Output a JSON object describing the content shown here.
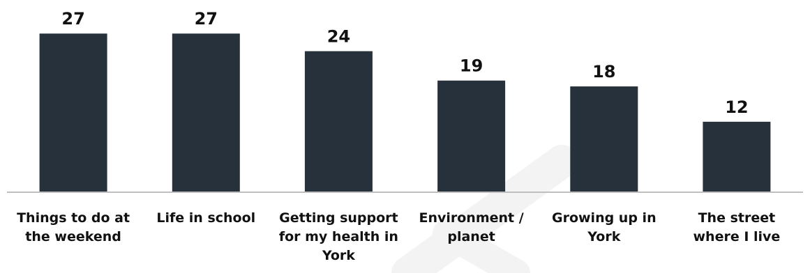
{
  "chart_data": {
    "type": "bar",
    "categories": [
      [
        "Things to do at",
        "the weekend"
      ],
      [
        "Life in school"
      ],
      [
        "Getting support",
        "for my health in",
        "York"
      ],
      [
        "Environment /",
        "planet"
      ],
      [
        "Growing up in",
        "York"
      ],
      [
        "The street",
        "where I live"
      ]
    ],
    "values": [
      27,
      27,
      24,
      19,
      18,
      12
    ],
    "title": "",
    "xlabel": "",
    "ylabel": "",
    "ylim": [
      0,
      27.5
    ],
    "grid": false,
    "legend": "none",
    "bar_color": "#27313b",
    "axis_color": "#bfbfbf",
    "data_labels": true
  }
}
